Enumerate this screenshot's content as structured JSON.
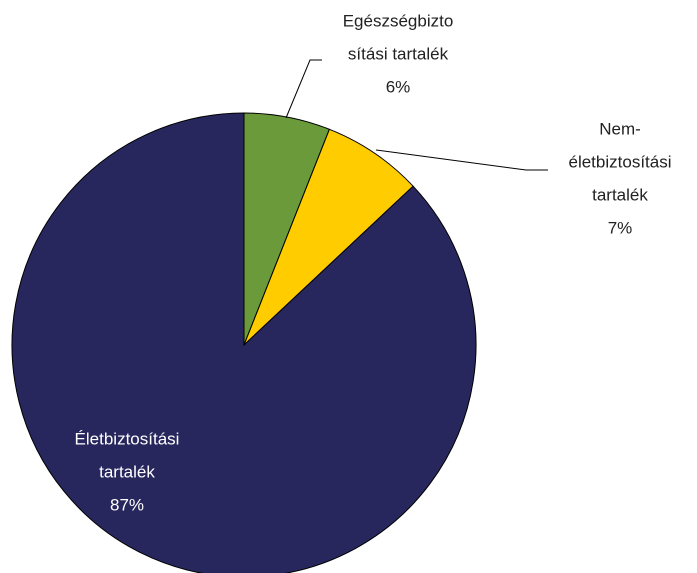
{
  "chart_data": {
    "type": "pie",
    "categories": [
      [
        "Egészségbizto",
        "sítási tartalék"
      ],
      [
        "Nem-",
        "életbiztosítási",
        "tartalék"
      ],
      [
        "Életbiztosítási",
        "tartalék"
      ]
    ],
    "values": [
      6,
      7,
      87
    ],
    "value_labels": [
      "6%",
      "7%",
      "87%"
    ],
    "colors": [
      "#6a9a3a",
      "#ffcc00",
      "#27275e"
    ]
  }
}
